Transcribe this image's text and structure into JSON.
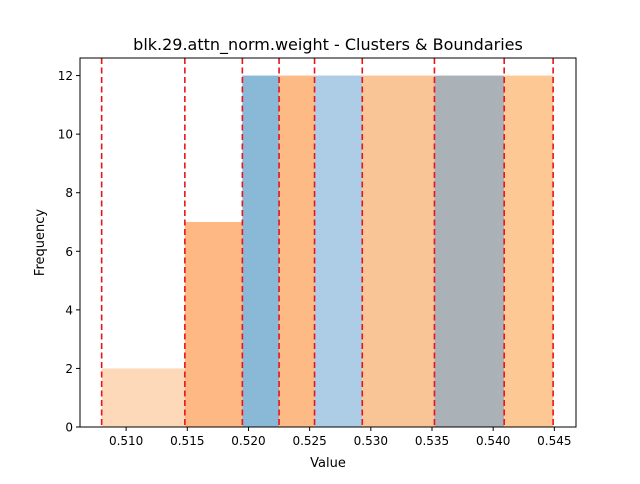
{
  "chart_data": {
    "type": "bar",
    "title": "blk.29.attn_norm.weight - Clusters & Boundaries",
    "xlabel": "Value",
    "ylabel": "Frequency",
    "xlim": [
      0.50623,
      0.54677
    ],
    "ylim": [
      0,
      12.6
    ],
    "x_ticks": [
      0.51,
      0.515,
      0.52,
      0.525,
      0.53,
      0.535,
      0.54,
      0.545
    ],
    "x_tick_labels": [
      "0.510",
      "0.515",
      "0.520",
      "0.525",
      "0.530",
      "0.535",
      "0.540",
      "0.545"
    ],
    "y_ticks": [
      0,
      2,
      4,
      6,
      8,
      10,
      12
    ],
    "y_tick_labels": [
      "0",
      "2",
      "4",
      "6",
      "8",
      "10",
      "12"
    ],
    "grid": false,
    "bars": [
      {
        "x0": 0.508,
        "x1": 0.5148,
        "value": 2,
        "color": "#fdd9b9"
      },
      {
        "x0": 0.5148,
        "x1": 0.5195,
        "value": 7,
        "color": "#feb883"
      },
      {
        "x0": 0.5195,
        "x1": 0.5225,
        "value": 12,
        "color": "#8ab8d7"
      },
      {
        "x0": 0.5225,
        "x1": 0.5254,
        "value": 12,
        "color": "#fdba84"
      },
      {
        "x0": 0.5254,
        "x1": 0.5293,
        "value": 12,
        "color": "#adcce6"
      },
      {
        "x0": 0.5293,
        "x1": 0.5352,
        "value": 12,
        "color": "#f9c496"
      },
      {
        "x0": 0.5352,
        "x1": 0.5409,
        "value": 12,
        "color": "#aab1b7"
      },
      {
        "x0": 0.5409,
        "x1": 0.5449,
        "value": 12,
        "color": "#fdc894"
      }
    ],
    "boundaries": [
      0.508,
      0.5148,
      0.5195,
      0.5225,
      0.5254,
      0.5293,
      0.5352,
      0.5409,
      0.5449
    ],
    "boundary_color": "#e8141b"
  }
}
